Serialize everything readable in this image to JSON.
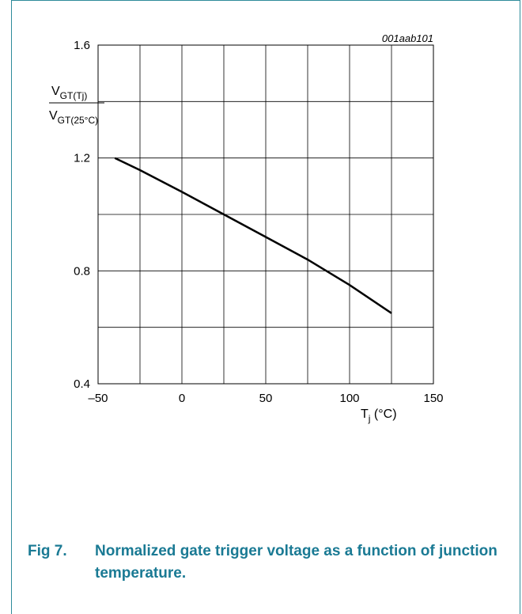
{
  "chart_data": {
    "type": "line",
    "figure_id": "001aab101",
    "ylabel_num_main": "V",
    "ylabel_num_sub": "GT(Tj)",
    "ylabel_den_main": "V",
    "ylabel_den_sub": "GT(25°C)",
    "xlabel_main": "T",
    "xlabel_sub": "j",
    "xlabel_unit": "(°C)",
    "xlim": [
      -50,
      150
    ],
    "ylim": [
      0.4,
      1.6
    ],
    "x_ticks": [
      -50,
      0,
      50,
      100,
      150
    ],
    "x_tick_labels": [
      "–50",
      "0",
      "50",
      "100",
      "150"
    ],
    "y_ticks": [
      0.4,
      0.8,
      1.2,
      1.6
    ],
    "y_tick_labels": [
      "0.4",
      "0.8",
      "1.2",
      "1.6"
    ],
    "grid": true,
    "series": [
      {
        "x": [
          -40,
          -25,
          0,
          25,
          50,
          75,
          100,
          125
        ],
        "y": [
          1.2,
          1.157,
          1.08,
          1.0,
          0.92,
          0.84,
          0.75,
          0.65
        ]
      }
    ]
  },
  "caption": {
    "number": "Fig 7.",
    "text": "Normalized gate trigger voltage as a function of junction temperature."
  }
}
